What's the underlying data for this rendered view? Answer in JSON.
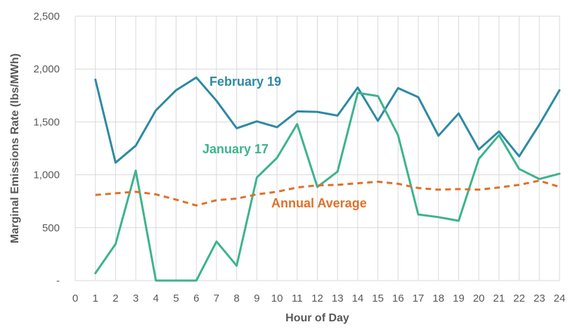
{
  "chart_data": {
    "type": "line",
    "xlabel": "Hour of Day",
    "ylabel": "Marginal Emissions Rate (lbs/MWh)",
    "x": [
      1,
      2,
      3,
      4,
      5,
      6,
      7,
      8,
      9,
      10,
      11,
      12,
      13,
      14,
      15,
      16,
      17,
      18,
      19,
      20,
      21,
      22,
      23,
      24
    ],
    "xlim": [
      0,
      24
    ],
    "ylim": [
      0,
      2500
    ],
    "y_ticks": [
      0,
      500,
      1000,
      1500,
      2000,
      2500
    ],
    "y_tick_labels": [
      "-",
      "500",
      "1,000",
      "1,500",
      "2,000",
      "2,500"
    ],
    "x_tick_labels": [
      "0",
      "1",
      "2",
      "3",
      "4",
      "5",
      "6",
      "7",
      "8",
      "9",
      "10",
      "11",
      "12",
      "13",
      "14",
      "15",
      "16",
      "17",
      "18",
      "19",
      "20",
      "21",
      "22",
      "23",
      "24"
    ],
    "grid": "vertical and horizontal",
    "legend": "inline labels",
    "series": [
      {
        "name": "February 19",
        "color": "#2e8aa3",
        "dash": "solid",
        "values": [
          1900,
          1115,
          1275,
          1610,
          1800,
          1920,
          1700,
          1440,
          1505,
          1450,
          1600,
          1595,
          1560,
          1825,
          1510,
          1820,
          1735,
          1370,
          1580,
          1240,
          1410,
          1175,
          1475,
          1800
        ]
      },
      {
        "name": "January 17",
        "color": "#3db38e",
        "dash": "solid",
        "values": [
          70,
          345,
          1040,
          0,
          0,
          0,
          370,
          140,
          975,
          1160,
          1480,
          885,
          1030,
          1775,
          1745,
          1375,
          625,
          600,
          565,
          1150,
          1375,
          1055,
          960,
          1010
        ]
      },
      {
        "name": "Annual Average",
        "color": "#e0702a",
        "dash": "dashed",
        "values": [
          810,
          825,
          840,
          815,
          765,
          710,
          760,
          775,
          815,
          840,
          880,
          900,
          905,
          920,
          935,
          915,
          875,
          860,
          865,
          860,
          880,
          905,
          945,
          885
        ]
      }
    ]
  }
}
